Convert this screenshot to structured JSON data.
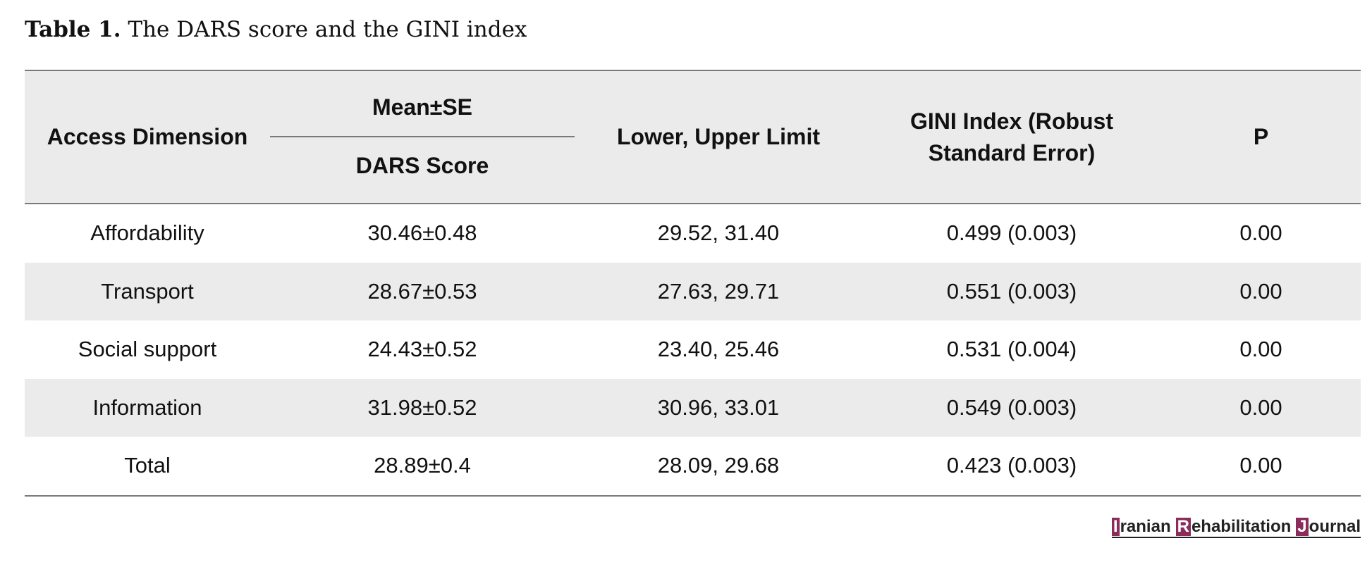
{
  "caption": {
    "label": "Table 1.",
    "text": "The DARS score and the GINI index"
  },
  "table": {
    "headers": {
      "access_dimension": "Access Dimension",
      "mean_se": "Mean±SE",
      "dars_score": "DARS Score",
      "lower_upper": "Lower, Upper Limit",
      "gini_index": "GINI Index (Robust Standard Error)",
      "p": "P"
    },
    "rows": [
      {
        "dimension": "Affordability",
        "dars": "30.46±0.48",
        "limits": "29.52, 31.40",
        "gini": "0.499 (0.003)",
        "p": "0.00"
      },
      {
        "dimension": "Transport",
        "dars": "28.67±0.53",
        "limits": "27.63, 29.71",
        "gini": "0.551 (0.003)",
        "p": "0.00"
      },
      {
        "dimension": "Social support",
        "dars": "24.43±0.52",
        "limits": "23.40, 25.46",
        "gini": "0.531 (0.004)",
        "p": "0.00"
      },
      {
        "dimension": "Information",
        "dars": "31.98±0.52",
        "limits": "30.96, 33.01",
        "gini": "0.549 (0.003)",
        "p": "0.00"
      },
      {
        "dimension": "Total",
        "dars": "28.89±0.4",
        "limits": "28.09, 29.68",
        "gini": "0.423 (0.003)",
        "p": "0.00"
      }
    ]
  },
  "journal_logo": {
    "word1_initial": "I",
    "word1_rest": "ranian",
    "word2_initial": "R",
    "word2_rest": "ehabilitation",
    "word3_initial": "J",
    "word3_rest": "ournal",
    "accent_color": "#8b2c5a"
  }
}
